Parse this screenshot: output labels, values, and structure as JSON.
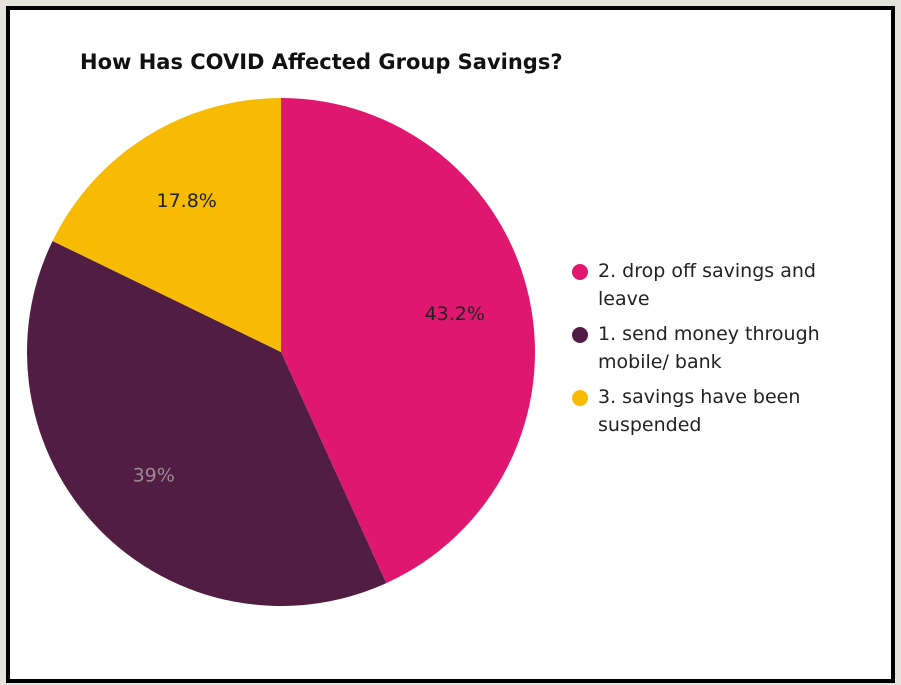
{
  "chart_data": {
    "type": "pie",
    "title": "How Has COVID Affected Group Savings?",
    "slices": [
      {
        "label": "2. drop off savings and leave",
        "value": 43.2,
        "display": "43.2%",
        "color": "#e0176f",
        "label_color": "#222222"
      },
      {
        "label": "1. send money through mobile/ bank",
        "value": 39,
        "display": "39%",
        "color": "#521d43",
        "label_color": "#9a8a95"
      },
      {
        "label": "3. savings have been suspended",
        "value": 17.8,
        "display": "17.8%",
        "color": "#f7bb04",
        "label_color": "#222222"
      }
    ],
    "legend_position": "right"
  }
}
